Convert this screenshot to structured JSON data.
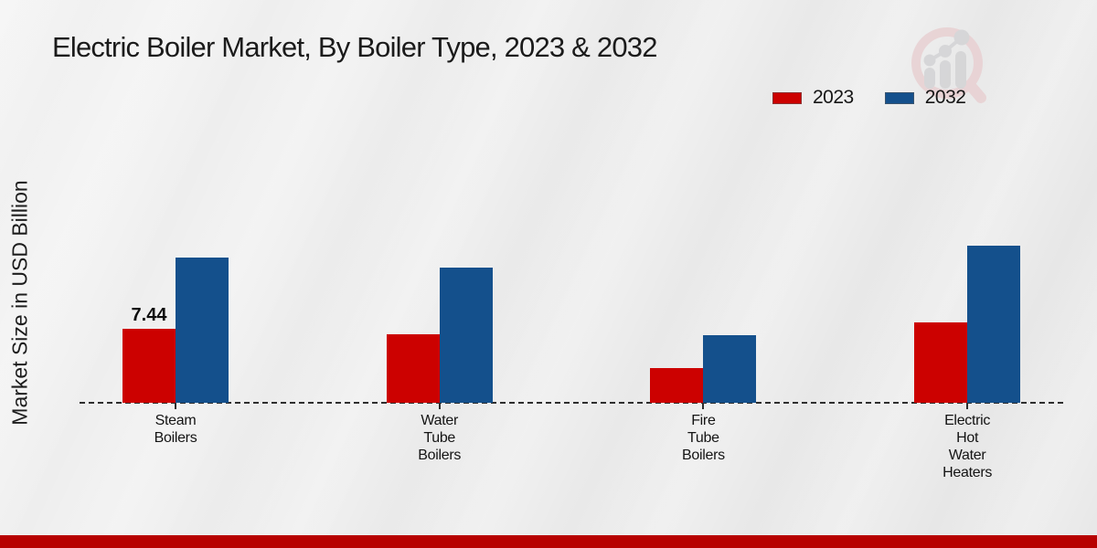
{
  "title": "Electric Boiler Market, By Boiler Type, 2023 & 2032",
  "y_axis_label": "Market Size in USD Billion",
  "legend": {
    "position": "top-right",
    "items": [
      {
        "label": "2023",
        "color": "#cc0100"
      },
      {
        "label": "2032",
        "color": "#14508c"
      }
    ]
  },
  "colors": {
    "series_2023": "#cc0100",
    "series_2032": "#14508c",
    "footer": "#b70100",
    "baseline": "#2e2e2e"
  },
  "watermark_icon": "magnifier-bar-chart-logo",
  "chart_data": {
    "type": "bar",
    "title": "Electric Boiler Market, By Boiler Type, 2023 & 2032",
    "ylabel": "Market Size in USD Billion",
    "xlabel": "",
    "categories": [
      "Steam Boilers",
      "Water Tube Boilers",
      "Fire Tube Boilers",
      "Electric Hot Water Heaters"
    ],
    "category_label_lines": [
      [
        "Steam",
        "Boilers"
      ],
      [
        "Water",
        "Tube",
        "Boilers"
      ],
      [
        "Fire",
        "Tube",
        "Boilers"
      ],
      [
        "Electric",
        "Hot",
        "Water",
        "Heaters"
      ]
    ],
    "series": [
      {
        "name": "2023",
        "color": "#cc0100",
        "values": [
          7.44,
          6.9,
          3.5,
          8.1
        ]
      },
      {
        "name": "2032",
        "color": "#14508c",
        "values": [
          14.6,
          13.6,
          6.8,
          15.8
        ]
      }
    ],
    "data_labels": [
      {
        "series": "2023",
        "category_index": 0,
        "text": "7.44"
      }
    ],
    "ylim": [
      0,
      17
    ],
    "grid": false,
    "baseline_style": "dashed",
    "legend_position": "top-right"
  }
}
